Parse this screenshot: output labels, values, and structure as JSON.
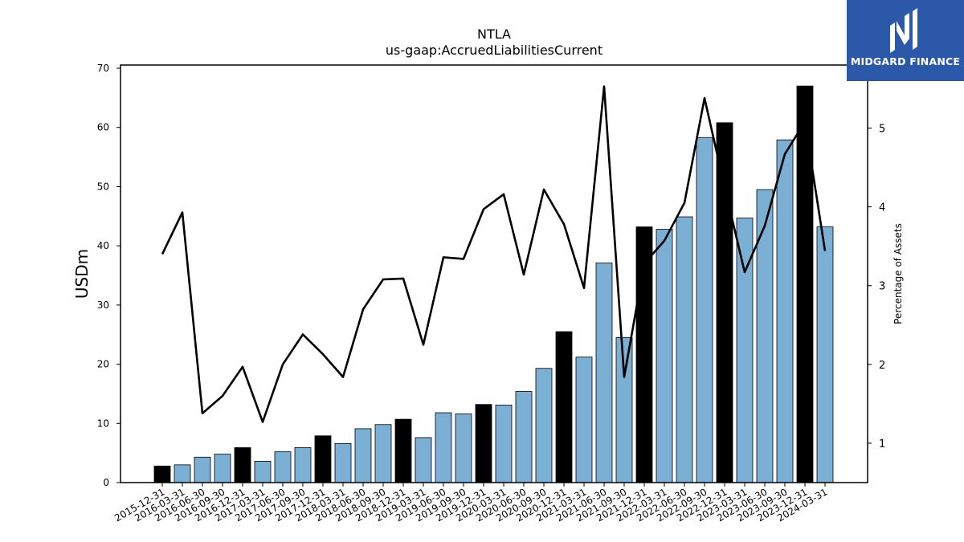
{
  "logo": {
    "brand": "MIDGARD FINANCE",
    "icon": "midgard-m-logo-icon",
    "bg": "#2b58a8"
  },
  "chart_data": {
    "type": "bar",
    "title": "NTLA",
    "subtitle": "us-gaap:AccruedLiabilitiesCurrent",
    "ylabel": "USDm",
    "y2label": "Percentage of Assets",
    "ylim": [
      0,
      70
    ],
    "y2lim": [
      0.5,
      5.8
    ],
    "yticks": [
      0,
      10,
      20,
      30,
      40,
      50,
      60,
      70
    ],
    "y2ticks": [
      1,
      2,
      3,
      4,
      5
    ],
    "bar_color_quarter": "#7bafd4",
    "bar_color_year_end": "#000000",
    "line_color": "#000000",
    "categories": [
      "2015-12-31",
      "2016-03-31",
      "2016-06-30",
      "2016-09-30",
      "2016-12-31",
      "2017-03-31",
      "2017-06-30",
      "2017-09-30",
      "2017-12-31",
      "2018-03-31",
      "2018-06-30",
      "2018-09-30",
      "2018-12-31",
      "2019-03-31",
      "2019-06-30",
      "2019-09-30",
      "2019-12-31",
      "2020-03-31",
      "2020-06-30",
      "2020-09-30",
      "2020-12-31",
      "2021-03-31",
      "2021-06-30",
      "2021-09-30",
      "2021-12-31",
      "2022-03-31",
      "2022-06-30",
      "2022-09-30",
      "2022-12-31",
      "2023-03-31",
      "2023-06-30",
      "2023-09-30",
      "2023-12-31",
      "2024-03-31"
    ],
    "series": [
      {
        "kind": "bar",
        "axis": "left",
        "values": [
          2.8,
          3.0,
          4.3,
          4.8,
          5.9,
          3.6,
          5.2,
          5.9,
          7.9,
          6.6,
          9.1,
          9.8,
          10.7,
          7.6,
          11.8,
          11.6,
          13.2,
          13.1,
          15.4,
          19.3,
          25.5,
          21.2,
          37.1,
          24.5,
          43.2,
          42.8,
          44.9,
          58.3,
          60.8,
          44.7,
          49.5,
          57.9,
          67.0,
          43.2
        ]
      },
      {
        "kind": "line",
        "axis": "right",
        "values": [
          3.4,
          3.93,
          1.38,
          1.6,
          1.97,
          1.27,
          2.0,
          2.38,
          2.13,
          1.84,
          2.7,
          3.08,
          3.09,
          2.25,
          3.36,
          3.34,
          3.97,
          4.16,
          3.14,
          4.22,
          3.78,
          2.97,
          5.53,
          1.84,
          3.28,
          3.57,
          4.05,
          5.38,
          4.25,
          3.17,
          3.76,
          4.67,
          5.08,
          3.44
        ]
      }
    ]
  }
}
